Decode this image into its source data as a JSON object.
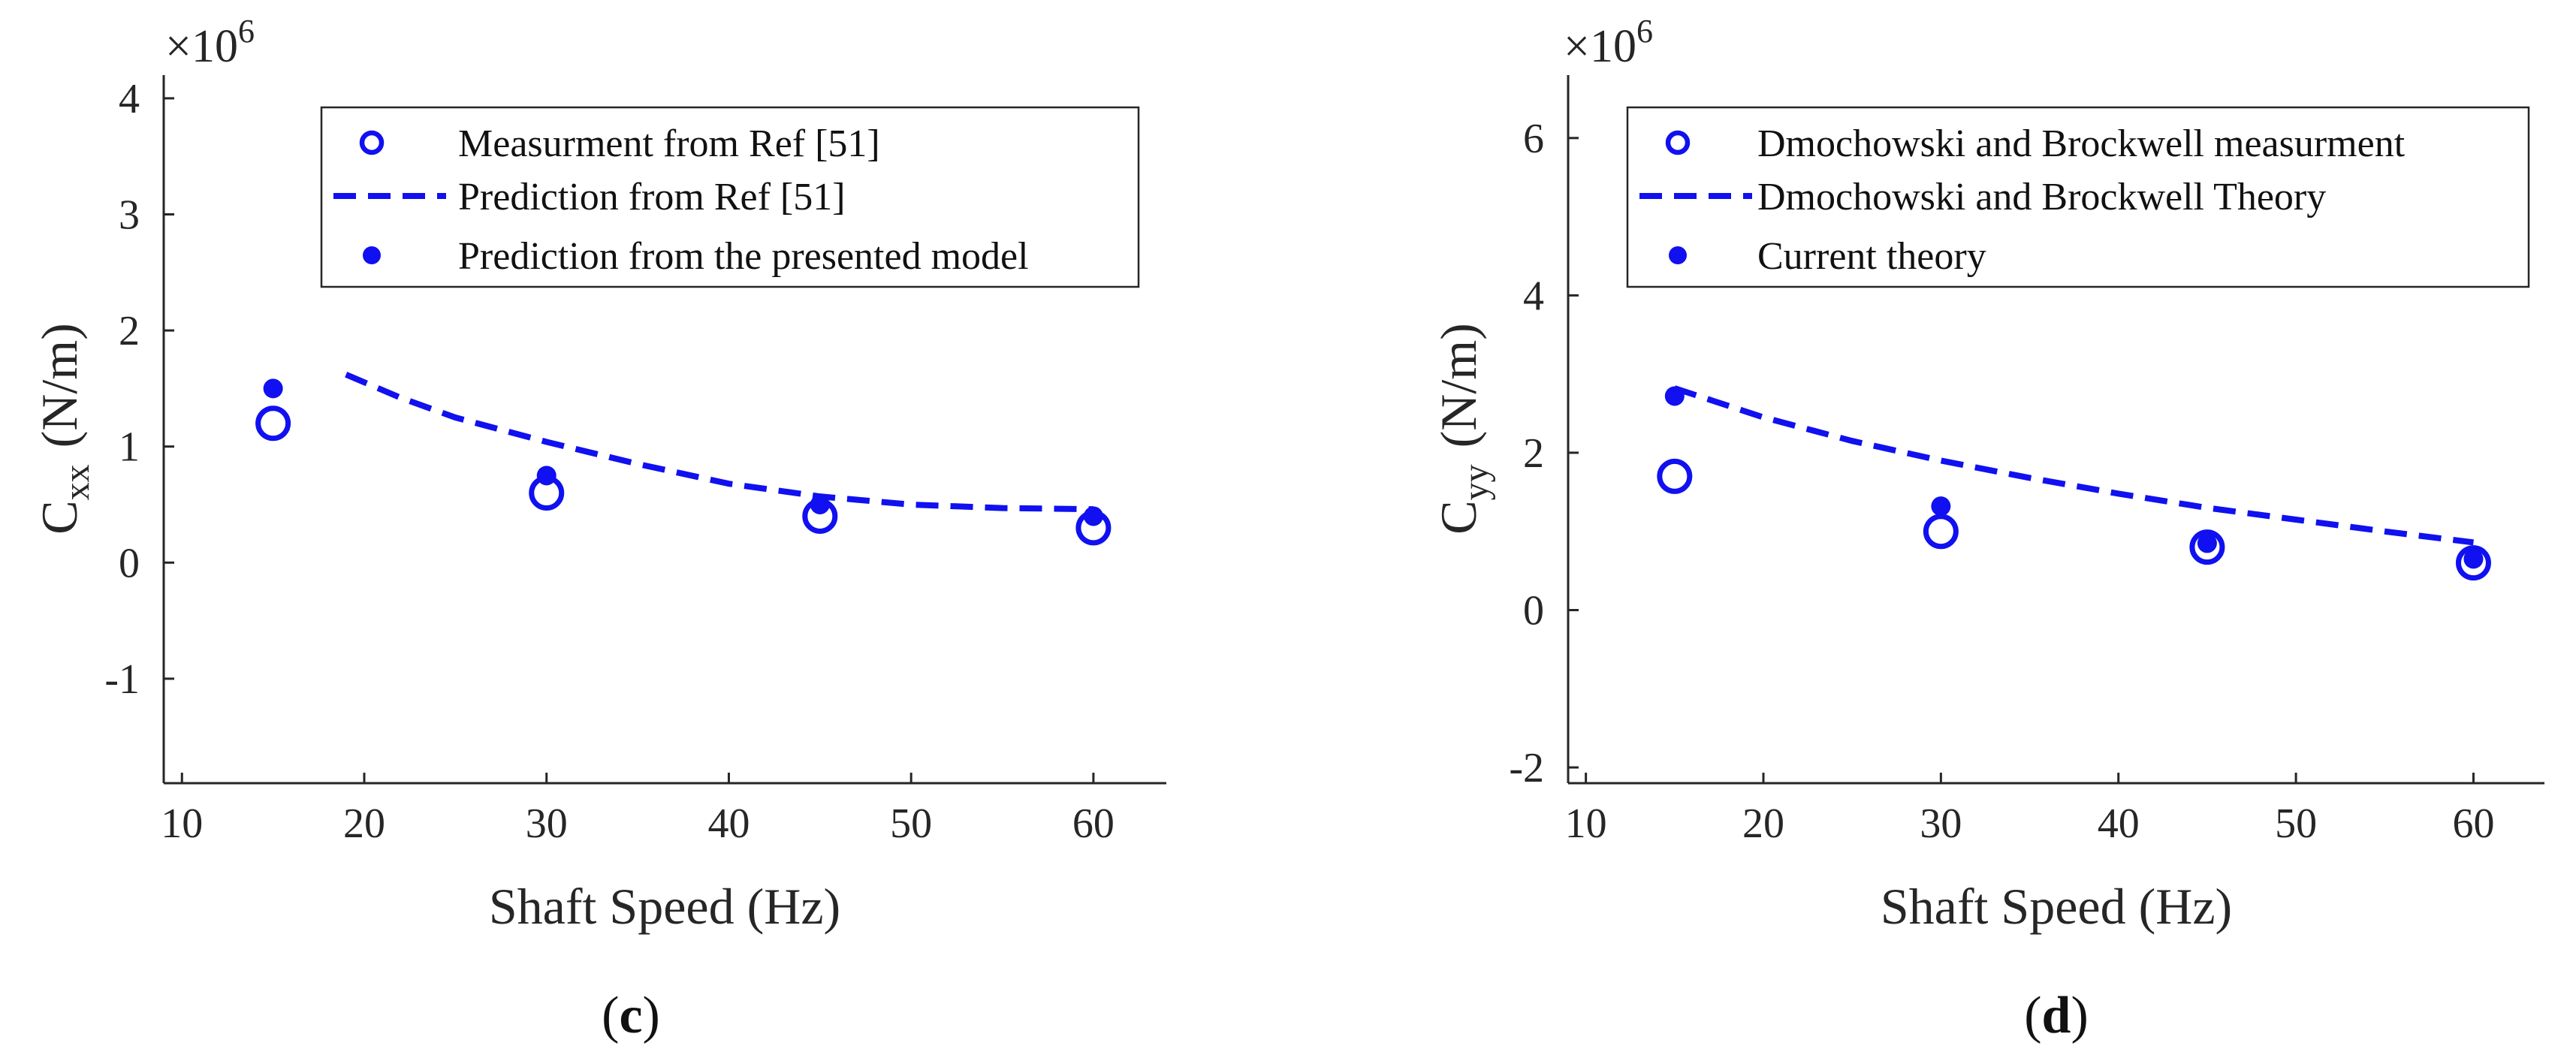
{
  "colors": {
    "series": "#1010f0",
    "axis": "#262626",
    "background": "#ffffff"
  },
  "chart_data": [
    {
      "type": "scatter",
      "panel_label": "c",
      "xlabel": "Shaft Speed (Hz)",
      "ylabel_base": "C",
      "ylabel_sub": "xx",
      "ylabel_unit": "(N/m)",
      "exponent_base": "×10",
      "exponent_power": "6",
      "xlim": [
        9,
        64
      ],
      "ylim": [
        -1.9,
        4.2
      ],
      "xticks": [
        10,
        20,
        30,
        40,
        50,
        60
      ],
      "xtick_labels": [
        "10",
        "20",
        "30",
        "40",
        "50",
        "60"
      ],
      "yticks": [
        -1,
        0,
        1,
        2,
        3,
        4
      ],
      "ytick_labels": [
        "-1",
        "0",
        "1",
        "2",
        "3",
        "4"
      ],
      "legend_position": "top-right",
      "series": [
        {
          "name": "Measurment from Ref [51]",
          "marker": "open-circle",
          "x": [
            15,
            30,
            45,
            60
          ],
          "y": [
            1.2,
            0.6,
            0.4,
            0.3
          ]
        },
        {
          "name": "Prediction from Ref [51]",
          "marker": "dashed-line",
          "x": [
            19,
            22,
            25,
            30,
            35,
            40,
            45,
            50,
            55,
            60
          ],
          "y": [
            1.62,
            1.42,
            1.25,
            1.04,
            0.85,
            0.68,
            0.57,
            0.5,
            0.47,
            0.46
          ]
        },
        {
          "name": "Prediction from the presented model",
          "marker": "filled-dot",
          "x": [
            15,
            30,
            45,
            60
          ],
          "y": [
            1.5,
            0.75,
            0.5,
            0.4
          ]
        }
      ]
    },
    {
      "type": "scatter",
      "panel_label": "d",
      "xlabel": "Shaft Speed (Hz)",
      "ylabel_base": "C",
      "ylabel_sub": "yy",
      "ylabel_unit": "(N/m)",
      "exponent_base": "×10",
      "exponent_power": "6",
      "xlim": [
        9,
        64
      ],
      "ylim": [
        -2.2,
        6.8
      ],
      "xticks": [
        10,
        20,
        30,
        40,
        50,
        60
      ],
      "xtick_labels": [
        "10",
        "20",
        "30",
        "40",
        "50",
        "60"
      ],
      "yticks": [
        -2,
        0,
        2,
        4,
        6
      ],
      "ytick_labels": [
        "-2",
        "0",
        "2",
        "4",
        "6"
      ],
      "legend_position": "top-right",
      "series": [
        {
          "name": "Dmochowski and Brockwell measurment",
          "marker": "open-circle",
          "x": [
            15,
            30,
            45,
            60
          ],
          "y": [
            1.7,
            1.0,
            0.8,
            0.6
          ]
        },
        {
          "name": "Dmochowski and Brockwell Theory",
          "marker": "dashed-line",
          "x": [
            15,
            20,
            25,
            30,
            35,
            40,
            45,
            50,
            55,
            60
          ],
          "y": [
            2.82,
            2.45,
            2.15,
            1.9,
            1.68,
            1.48,
            1.3,
            1.15,
            1.0,
            0.86
          ]
        },
        {
          "name": "Current theory",
          "marker": "filled-dot",
          "x": [
            15,
            30,
            45,
            60
          ],
          "y": [
            2.72,
            1.32,
            0.85,
            0.65
          ]
        }
      ]
    }
  ]
}
